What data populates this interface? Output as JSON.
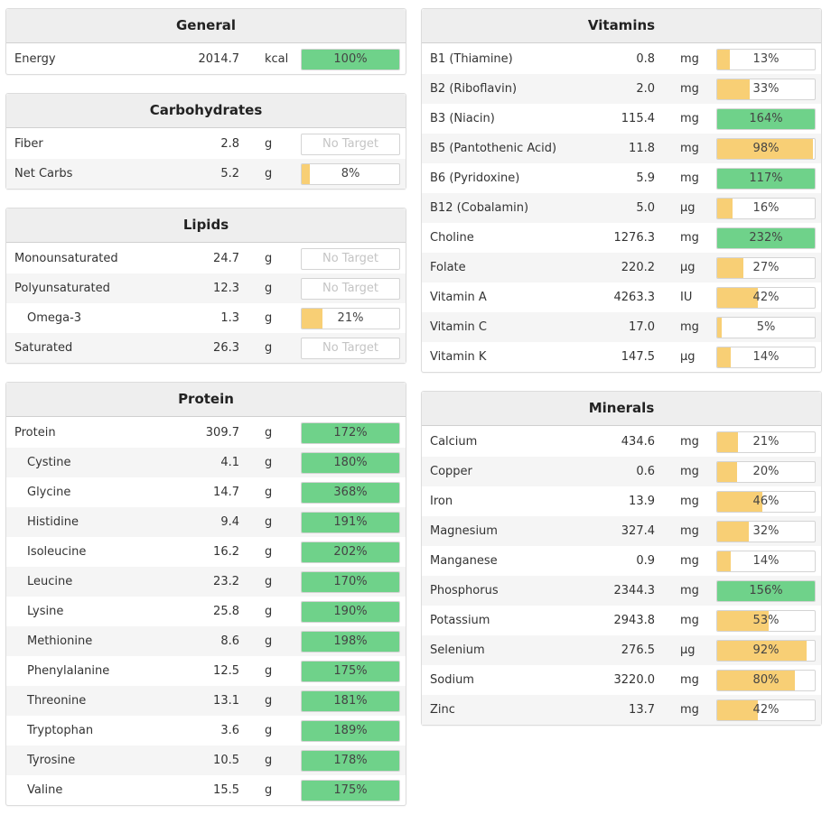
{
  "colors": {
    "green": "#6fd28a",
    "yellow": "#f8cf75"
  },
  "left": [
    {
      "id": "general",
      "title": "General",
      "rows": [
        {
          "name": "Energy",
          "amount": "2014.7",
          "unit": "kcal",
          "label": "100%",
          "pct": 100,
          "color": "green"
        }
      ]
    },
    {
      "id": "carbohydrates",
      "title": "Carbohydrates",
      "rows": [
        {
          "name": "Fiber",
          "amount": "2.8",
          "unit": "g",
          "label": "No Target",
          "pct": 0,
          "color": "none"
        },
        {
          "name": "Net Carbs",
          "amount": "5.2",
          "unit": "g",
          "label": "8%",
          "pct": 8,
          "color": "yellow"
        }
      ]
    },
    {
      "id": "lipids",
      "title": "Lipids",
      "rows": [
        {
          "name": "Monounsaturated",
          "amount": "24.7",
          "unit": "g",
          "label": "No Target",
          "pct": 0,
          "color": "none"
        },
        {
          "name": "Polyunsaturated",
          "amount": "12.3",
          "unit": "g",
          "label": "No Target",
          "pct": 0,
          "color": "none"
        },
        {
          "name": "Omega-3",
          "amount": "1.3",
          "unit": "g",
          "label": "21%",
          "pct": 21,
          "color": "yellow",
          "sub": true
        },
        {
          "name": "Saturated",
          "amount": "26.3",
          "unit": "g",
          "label": "No Target",
          "pct": 0,
          "color": "none"
        }
      ]
    },
    {
      "id": "protein",
      "title": "Protein",
      "rows": [
        {
          "name": "Protein",
          "amount": "309.7",
          "unit": "g",
          "label": "172%",
          "pct": 172,
          "color": "green"
        },
        {
          "name": "Cystine",
          "amount": "4.1",
          "unit": "g",
          "label": "180%",
          "pct": 180,
          "color": "green",
          "sub": true
        },
        {
          "name": "Glycine",
          "amount": "14.7",
          "unit": "g",
          "label": "368%",
          "pct": 368,
          "color": "green",
          "sub": true
        },
        {
          "name": "Histidine",
          "amount": "9.4",
          "unit": "g",
          "label": "191%",
          "pct": 191,
          "color": "green",
          "sub": true
        },
        {
          "name": "Isoleucine",
          "amount": "16.2",
          "unit": "g",
          "label": "202%",
          "pct": 202,
          "color": "green",
          "sub": true
        },
        {
          "name": "Leucine",
          "amount": "23.2",
          "unit": "g",
          "label": "170%",
          "pct": 170,
          "color": "green",
          "sub": true
        },
        {
          "name": "Lysine",
          "amount": "25.8",
          "unit": "g",
          "label": "190%",
          "pct": 190,
          "color": "green",
          "sub": true
        },
        {
          "name": "Methionine",
          "amount": "8.6",
          "unit": "g",
          "label": "198%",
          "pct": 198,
          "color": "green",
          "sub": true
        },
        {
          "name": "Phenylalanine",
          "amount": "12.5",
          "unit": "g",
          "label": "175%",
          "pct": 175,
          "color": "green",
          "sub": true
        },
        {
          "name": "Threonine",
          "amount": "13.1",
          "unit": "g",
          "label": "181%",
          "pct": 181,
          "color": "green",
          "sub": true
        },
        {
          "name": "Tryptophan",
          "amount": "3.6",
          "unit": "g",
          "label": "189%",
          "pct": 189,
          "color": "green",
          "sub": true
        },
        {
          "name": "Tyrosine",
          "amount": "10.5",
          "unit": "g",
          "label": "178%",
          "pct": 178,
          "color": "green",
          "sub": true
        },
        {
          "name": "Valine",
          "amount": "15.5",
          "unit": "g",
          "label": "175%",
          "pct": 175,
          "color": "green",
          "sub": true
        }
      ]
    }
  ],
  "right": [
    {
      "id": "vitamins",
      "title": "Vitamins",
      "rows": [
        {
          "name": "B1 (Thiamine)",
          "amount": "0.8",
          "unit": "mg",
          "label": "13%",
          "pct": 13,
          "color": "yellow"
        },
        {
          "name": "B2 (Riboflavin)",
          "amount": "2.0",
          "unit": "mg",
          "label": "33%",
          "pct": 33,
          "color": "yellow"
        },
        {
          "name": "B3 (Niacin)",
          "amount": "115.4",
          "unit": "mg",
          "label": "164%",
          "pct": 164,
          "color": "green"
        },
        {
          "name": "B5 (Pantothenic Acid)",
          "amount": "11.8",
          "unit": "mg",
          "label": "98%",
          "pct": 98,
          "color": "yellow"
        },
        {
          "name": "B6 (Pyridoxine)",
          "amount": "5.9",
          "unit": "mg",
          "label": "117%",
          "pct": 117,
          "color": "green"
        },
        {
          "name": "B12 (Cobalamin)",
          "amount": "5.0",
          "unit": "µg",
          "label": "16%",
          "pct": 16,
          "color": "yellow"
        },
        {
          "name": "Choline",
          "amount": "1276.3",
          "unit": "mg",
          "label": "232%",
          "pct": 232,
          "color": "green"
        },
        {
          "name": "Folate",
          "amount": "220.2",
          "unit": "µg",
          "label": "27%",
          "pct": 27,
          "color": "yellow"
        },
        {
          "name": "Vitamin A",
          "amount": "4263.3",
          "unit": "IU",
          "label": "42%",
          "pct": 42,
          "color": "yellow"
        },
        {
          "name": "Vitamin C",
          "amount": "17.0",
          "unit": "mg",
          "label": "5%",
          "pct": 5,
          "color": "yellow"
        },
        {
          "name": "Vitamin K",
          "amount": "147.5",
          "unit": "µg",
          "label": "14%",
          "pct": 14,
          "color": "yellow"
        }
      ]
    },
    {
      "id": "minerals",
      "title": "Minerals",
      "rows": [
        {
          "name": "Calcium",
          "amount": "434.6",
          "unit": "mg",
          "label": "21%",
          "pct": 21,
          "color": "yellow"
        },
        {
          "name": "Copper",
          "amount": "0.6",
          "unit": "mg",
          "label": "20%",
          "pct": 20,
          "color": "yellow"
        },
        {
          "name": "Iron",
          "amount": "13.9",
          "unit": "mg",
          "label": "46%",
          "pct": 46,
          "color": "yellow"
        },
        {
          "name": "Magnesium",
          "amount": "327.4",
          "unit": "mg",
          "label": "32%",
          "pct": 32,
          "color": "yellow"
        },
        {
          "name": "Manganese",
          "amount": "0.9",
          "unit": "mg",
          "label": "14%",
          "pct": 14,
          "color": "yellow"
        },
        {
          "name": "Phosphorus",
          "amount": "2344.3",
          "unit": "mg",
          "label": "156%",
          "pct": 156,
          "color": "green"
        },
        {
          "name": "Potassium",
          "amount": "2943.8",
          "unit": "mg",
          "label": "53%",
          "pct": 53,
          "color": "yellow"
        },
        {
          "name": "Selenium",
          "amount": "276.5",
          "unit": "µg",
          "label": "92%",
          "pct": 92,
          "color": "yellow"
        },
        {
          "name": "Sodium",
          "amount": "3220.0",
          "unit": "mg",
          "label": "80%",
          "pct": 80,
          "color": "yellow"
        },
        {
          "name": "Zinc",
          "amount": "13.7",
          "unit": "mg",
          "label": "42%",
          "pct": 42,
          "color": "yellow"
        }
      ]
    }
  ]
}
